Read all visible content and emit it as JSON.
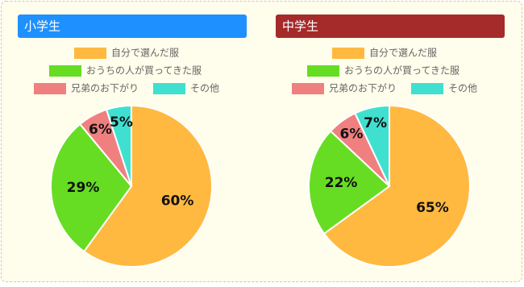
{
  "chart_data": [
    {
      "type": "pie",
      "title": "小学生",
      "header_color": "#1e90ff",
      "categories": [
        "自分で選んだ服",
        "おうちの人が買ってきた服",
        "兄弟のお下がり",
        "その他"
      ],
      "values": [
        60,
        29,
        6,
        5
      ],
      "value_labels": [
        "60%",
        "29%",
        "6%",
        "5%"
      ],
      "colors": [
        "#ffb940",
        "#66dd22",
        "#f08080",
        "#40e0d0"
      ]
    },
    {
      "type": "pie",
      "title": "中学生",
      "header_color": "#a52a2a",
      "categories": [
        "自分で選んだ服",
        "おうちの人が買ってきた服",
        "兄弟のお下がり",
        "その他"
      ],
      "values": [
        65,
        22,
        6,
        7
      ],
      "value_labels": [
        "65%",
        "22%",
        "6%",
        "7%"
      ],
      "colors": [
        "#ffb940",
        "#66dd22",
        "#f08080",
        "#40e0d0"
      ]
    }
  ]
}
